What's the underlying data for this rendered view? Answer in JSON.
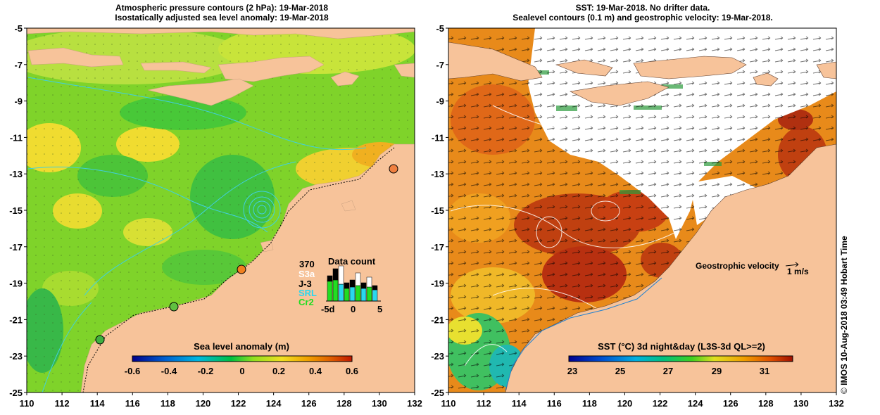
{
  "left_panel": {
    "title_line1": "Atmospheric pressure contours (2 hPa): 19-Mar-2018",
    "title_line2": "Isostatically adjusted sea level anomaly: 19-Mar-2018",
    "colorbar_label": "Sea level anomaly (m)",
    "colorbar_ticks": [
      "-0.6",
      "-0.4",
      "-0.2",
      "0",
      "0.2",
      "0.4",
      "0.6"
    ],
    "data_count": {
      "total": "370",
      "title": "Data count",
      "satellites": [
        {
          "name": "S3a",
          "color": "#ffffff"
        },
        {
          "name": "J-3",
          "color": "#000000"
        },
        {
          "name": "SRL",
          "color": "#2ad7ee"
        },
        {
          "name": "Cr2",
          "color": "#22dd22"
        }
      ],
      "axis_ticks": [
        "-5d",
        "0",
        "5"
      ]
    }
  },
  "right_panel": {
    "title_line1": "SST: 19-Mar-2018. No drifter data.",
    "title_line2": "Sealevel contours (0.1 m) and geostrophic velocity: 19-Mar-2018.",
    "velocity_label": "Geostrophic velocity",
    "velocity_scale": "1 m/s",
    "colorbar_label": "SST (°C) 3d night&day (L3S-3d QL>=2)",
    "colorbar_ticks": [
      "23",
      "25",
      "27",
      "29",
      "31"
    ]
  },
  "x_ticks": [
    "110",
    "112",
    "114",
    "116",
    "118",
    "120",
    "122",
    "124",
    "126",
    "128",
    "130",
    "132"
  ],
  "y_ticks": [
    "-5",
    "-7",
    "-9",
    "-11",
    "-13",
    "-15",
    "-17",
    "-19",
    "-21",
    "-23",
    "-25"
  ],
  "credit": {
    "symbol": "©",
    "text": "IMOS 10-Aug-2018 03:49 Hobart Time"
  },
  "colors": {
    "land": "#f7c39a",
    "slaColorbar": [
      "#00008b",
      "#0060d0",
      "#00b8e0",
      "#00c040",
      "#90e020",
      "#f0e020",
      "#f0a000",
      "#e06000",
      "#c01800"
    ],
    "sstColorbar": [
      "#000090",
      "#0050d0",
      "#00b0e0",
      "#00c080",
      "#40d020",
      "#e0e020",
      "#f0a000",
      "#e05000",
      "#a01000"
    ]
  }
}
